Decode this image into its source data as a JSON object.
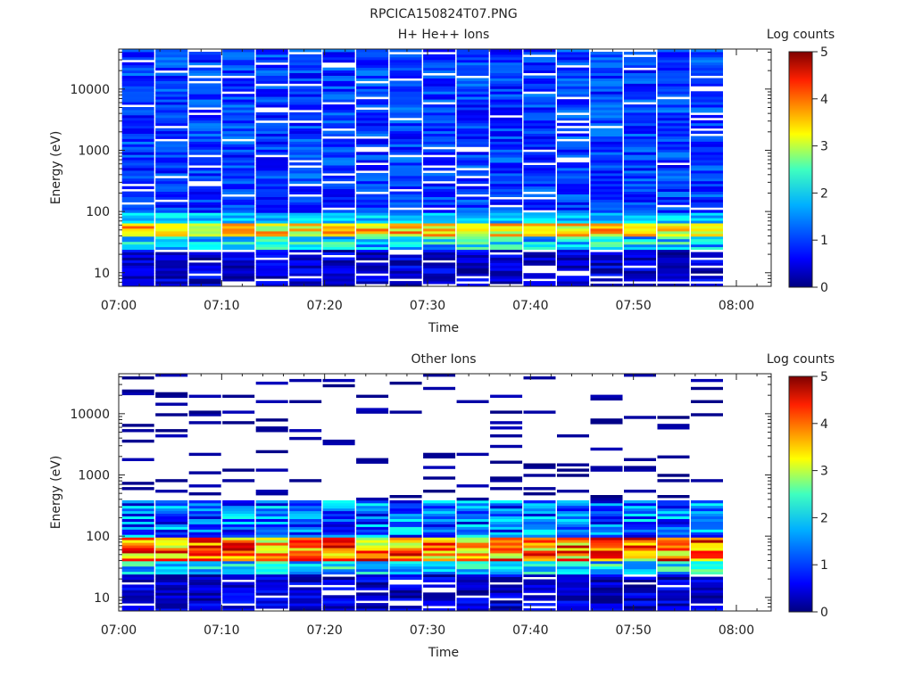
{
  "figure": {
    "title": "RPCICA150824T07.PNG"
  },
  "chart_data": [
    {
      "type": "heatmap",
      "title": "H+ He++ Ions",
      "xlabel": "Time",
      "ylabel": "Energy (eV)",
      "y_scale": "log",
      "xlim": [
        0,
        60
      ],
      "ylim": [
        6,
        45000
      ],
      "x_ticks": [
        "07:00",
        "07:10",
        "07:20",
        "07:30",
        "07:40",
        "07:50",
        "08:00"
      ],
      "y_ticks": [
        "10",
        "100",
        "1000",
        "10000"
      ],
      "colorbar": {
        "label": "Log counts",
        "range": [
          0,
          5
        ],
        "ticks": [
          "0",
          "1",
          "2",
          "3",
          "4",
          "5"
        ]
      },
      "time_columns_min": [
        1.25,
        4.5,
        7.75,
        11.0,
        14.25,
        17.5,
        20.75,
        24.0,
        27.25,
        30.5,
        33.75,
        37.0,
        40.25,
        43.5,
        46.75,
        50.0,
        53.25,
        56.5
      ],
      "energy_bands": [
        {
          "energy_range_eV": [
            100,
            45000
          ],
          "log_counts_typical": [
            0.5,
            1.3
          ],
          "note": "sparse background, empty bins scattered"
        },
        {
          "energy_range_eV": [
            65,
            100
          ],
          "log_counts_typical": [
            1.2,
            2.0
          ]
        },
        {
          "energy_range_eV": [
            40,
            65
          ],
          "log_counts_typical": [
            2.5,
            4.0
          ],
          "note": "peak flux"
        },
        {
          "energy_range_eV": [
            25,
            40
          ],
          "log_counts_typical": [
            1.0,
            2.5
          ]
        },
        {
          "energy_range_eV": [
            6,
            25
          ],
          "log_counts_typical": [
            0.0,
            0.8
          ]
        }
      ]
    },
    {
      "type": "heatmap",
      "title": "Other Ions",
      "xlabel": "Time",
      "ylabel": "Energy (eV)",
      "y_scale": "log",
      "xlim": [
        0,
        60
      ],
      "ylim": [
        6,
        45000
      ],
      "x_ticks": [
        "07:00",
        "07:10",
        "07:20",
        "07:30",
        "07:40",
        "07:50",
        "08:00"
      ],
      "y_ticks": [
        "10",
        "100",
        "1000",
        "10000"
      ],
      "colorbar": {
        "label": "Log counts",
        "range": [
          0,
          5
        ],
        "ticks": [
          "0",
          "1",
          "2",
          "3",
          "4",
          "5"
        ]
      },
      "time_columns_min": [
        1.25,
        4.5,
        7.75,
        11.0,
        14.25,
        17.5,
        20.75,
        24.0,
        27.25,
        30.5,
        33.75,
        37.0,
        40.25,
        43.5,
        46.75,
        50.0,
        53.25,
        56.5
      ],
      "energy_bands": [
        {
          "energy_range_eV": [
            400,
            45000
          ],
          "log_counts_typical": [
            0.0,
            0.3
          ],
          "note": "isolated single-count lines"
        },
        {
          "energy_range_eV": [
            100,
            400
          ],
          "log_counts_typical": [
            0.3,
            2.0
          ]
        },
        {
          "energy_range_eV": [
            40,
            100
          ],
          "log_counts_typical": [
            2.5,
            4.8
          ],
          "note": "peak flux"
        },
        {
          "energy_range_eV": [
            25,
            40
          ],
          "log_counts_typical": [
            1.0,
            2.5
          ]
        },
        {
          "energy_range_eV": [
            6,
            25
          ],
          "log_counts_typical": [
            0.0,
            0.8
          ]
        }
      ]
    }
  ]
}
